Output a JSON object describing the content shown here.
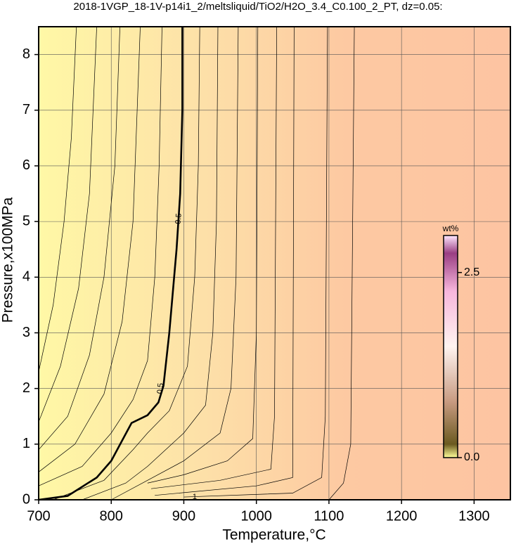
{
  "chart_data": {
    "type": "contour",
    "title": "2018-1VGP_18-1V-p14i1_2/meltsliquid/TiO2/H2O_3.4_C0.100_2_PT, dz=0.05:",
    "x_label": "Temperature,°C",
    "y_label": "Pressure,x100MPa",
    "xlim": [
      700,
      1350
    ],
    "ylim": [
      0,
      8.5
    ],
    "xticks": [
      700,
      800,
      900,
      1000,
      1100,
      1200,
      1300
    ],
    "yticks": [
      0,
      1,
      2,
      3,
      4,
      5,
      6,
      7,
      8
    ],
    "grid": true,
    "color": "#000000",
    "series": [
      {
        "x": [
          700,
          720,
          735,
          745,
          752
        ],
        "y": [
          2.3,
          3.5,
          5,
          6.5,
          8.5
        ]
      },
      {
        "x": [
          700,
          730,
          755,
          770,
          780
        ],
        "y": [
          1.4,
          2.4,
          3.8,
          5.5,
          8.5
        ]
      },
      {
        "x": [
          700,
          740,
          770,
          790,
          805,
          812
        ],
        "y": [
          0.9,
          1.5,
          2.6,
          4,
          6,
          8.5
        ]
      },
      {
        "x": [
          700,
          750,
          790,
          815,
          830,
          840
        ],
        "y": [
          0.5,
          1.0,
          1.9,
          3.2,
          5,
          8.5
        ]
      },
      {
        "x": [
          700,
          760,
          800,
          830,
          850,
          860,
          866,
          870
        ],
        "y": [
          0.25,
          0.6,
          1.2,
          1.8,
          2.5,
          4,
          6,
          8.5
        ]
      },
      {
        "x": [
          700,
          740,
          780,
          800,
          828,
          850,
          865,
          872,
          880,
          890,
          895,
          898,
          898
        ],
        "y": [
          0,
          0.07,
          0.4,
          0.7,
          1.38,
          1.52,
          1.75,
          2.05,
          3.0,
          4.5,
          5.5,
          7,
          8.5
        ],
        "bold": true
      },
      {
        "x": [
          720,
          790,
          830,
          850,
          880,
          905,
          915,
          920,
          922
        ],
        "y": [
          0,
          0.35,
          0.9,
          1.2,
          1.6,
          2.4,
          4,
          6,
          8.5
        ]
      },
      {
        "x": [
          760,
          820,
          850,
          900,
          930,
          940,
          945,
          947
        ],
        "y": [
          0,
          0.3,
          0.6,
          1.2,
          1.7,
          3,
          5,
          8.5
        ]
      },
      {
        "x": [
          800,
          850,
          900,
          950,
          965,
          972,
          975
        ],
        "y": [
          0,
          0.35,
          0.7,
          1.2,
          2,
          4,
          8.5
        ]
      },
      {
        "x": [
          850,
          900,
          960,
          995,
          1000,
          1002
        ],
        "y": [
          0.3,
          0.45,
          0.7,
          1.1,
          3,
          8.5
        ]
      },
      {
        "x": [
          855,
          950,
          1020,
          1025,
          1028
        ],
        "y": [
          0.2,
          0.35,
          0.55,
          1.5,
          8.5
        ]
      },
      {
        "x": [
          860,
          1000,
          1050,
          1052
        ],
        "y": [
          0.08,
          0.25,
          0.4,
          8.5
        ]
      },
      {
        "x": [
          900,
          1050,
          1090,
          1095,
          1098
        ],
        "y": [
          0.05,
          0.12,
          0.4,
          1.5,
          8.5
        ]
      },
      {
        "x": [
          1100,
          1120,
          1130,
          1135
        ],
        "y": [
          0,
          0.3,
          1,
          8.5
        ]
      }
    ],
    "annotations": [
      {
        "text": "0.5",
        "x": 893,
        "y": 5.05
      },
      {
        "text": "0.5",
        "x": 868,
        "y": 2.0
      },
      {
        "text": "1",
        "x": 915,
        "y": 0.05
      }
    ],
    "colorbar": {
      "label": "wt%",
      "lim": [
        0,
        3
      ],
      "ticks": [
        {
          "value": 0,
          "label": "0.0"
        },
        {
          "value": 2.5,
          "label": "2.5"
        }
      ]
    }
  }
}
